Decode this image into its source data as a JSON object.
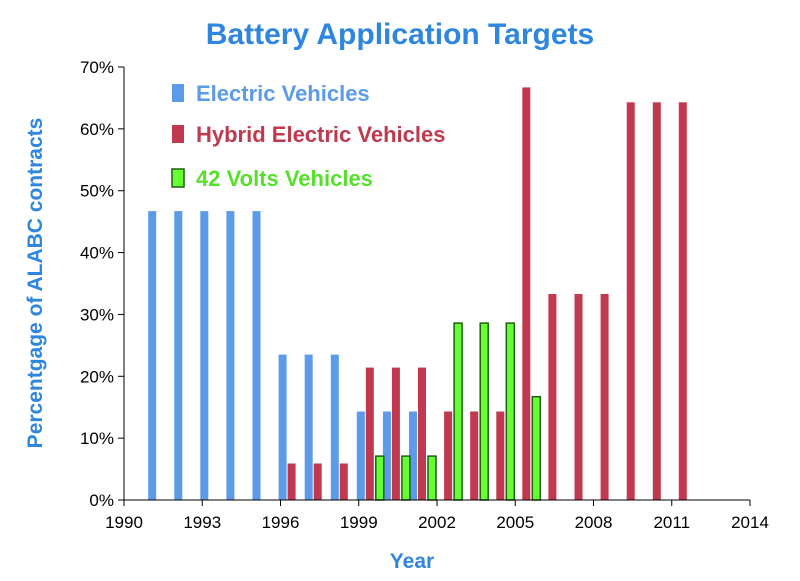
{
  "colors": {
    "title": "#2f86e0",
    "ev": "#5b9bea",
    "hev": "#c0394e",
    "v42_fill": "#66ff33",
    "v42_stroke": "#1f5f10",
    "axis": "#000000"
  },
  "chart_data": {
    "type": "bar",
    "title": "Battery Application Targets",
    "xlabel": "Year",
    "ylabel": "Percentgage of ALABC contracts",
    "xlim": [
      1990,
      2014
    ],
    "ylim": [
      0,
      70
    ],
    "x_ticks": [
      "1990",
      "1993",
      "1996",
      "1999",
      "2002",
      "2005",
      "2008",
      "2011",
      "2014"
    ],
    "y_ticks": [
      "0%",
      "10%",
      "20%",
      "30%",
      "40%",
      "50%",
      "60%",
      "70%"
    ],
    "grid": false,
    "legend_position": "top-left",
    "series": [
      {
        "name": "Electric Vehicles",
        "points": [
          {
            "x": 1992,
            "y": 46.7
          },
          {
            "x": 1993,
            "y": 46.7
          },
          {
            "x": 1994,
            "y": 46.7
          },
          {
            "x": 1995,
            "y": 46.7
          },
          {
            "x": 1996,
            "y": 46.7
          },
          {
            "x": 1997,
            "y": 23.5
          },
          {
            "x": 1998,
            "y": 23.5
          },
          {
            "x": 1999,
            "y": 23.5
          },
          {
            "x": 2000,
            "y": 14.3
          },
          {
            "x": 2001,
            "y": 14.3
          },
          {
            "x": 2002,
            "y": 14.3
          }
        ]
      },
      {
        "name": "Hybrid Electric Vehicles",
        "points": [
          {
            "x": 1997,
            "y": 5.9
          },
          {
            "x": 1998,
            "y": 5.9
          },
          {
            "x": 1999,
            "y": 5.9
          },
          {
            "x": 2000,
            "y": 21.4
          },
          {
            "x": 2001,
            "y": 21.4
          },
          {
            "x": 2002,
            "y": 21.4
          },
          {
            "x": 2003,
            "y": 14.3
          },
          {
            "x": 2004,
            "y": 14.3
          },
          {
            "x": 2005,
            "y": 14.3
          },
          {
            "x": 2006,
            "y": 66.7
          },
          {
            "x": 2007,
            "y": 33.3
          },
          {
            "x": 2008,
            "y": 33.3
          },
          {
            "x": 2009,
            "y": 33.3
          },
          {
            "x": 2010,
            "y": 64.3
          },
          {
            "x": 2011,
            "y": 64.3
          },
          {
            "x": 2012,
            "y": 64.3
          }
        ]
      },
      {
        "name": "42 Volts Vehicles",
        "points": [
          {
            "x": 2000,
            "y": 7.1
          },
          {
            "x": 2001,
            "y": 7.1
          },
          {
            "x": 2002,
            "y": 7.1
          },
          {
            "x": 2003,
            "y": 28.6
          },
          {
            "x": 2004,
            "y": 28.6
          },
          {
            "x": 2005,
            "y": 28.6
          },
          {
            "x": 2006,
            "y": 16.7
          }
        ]
      }
    ]
  }
}
